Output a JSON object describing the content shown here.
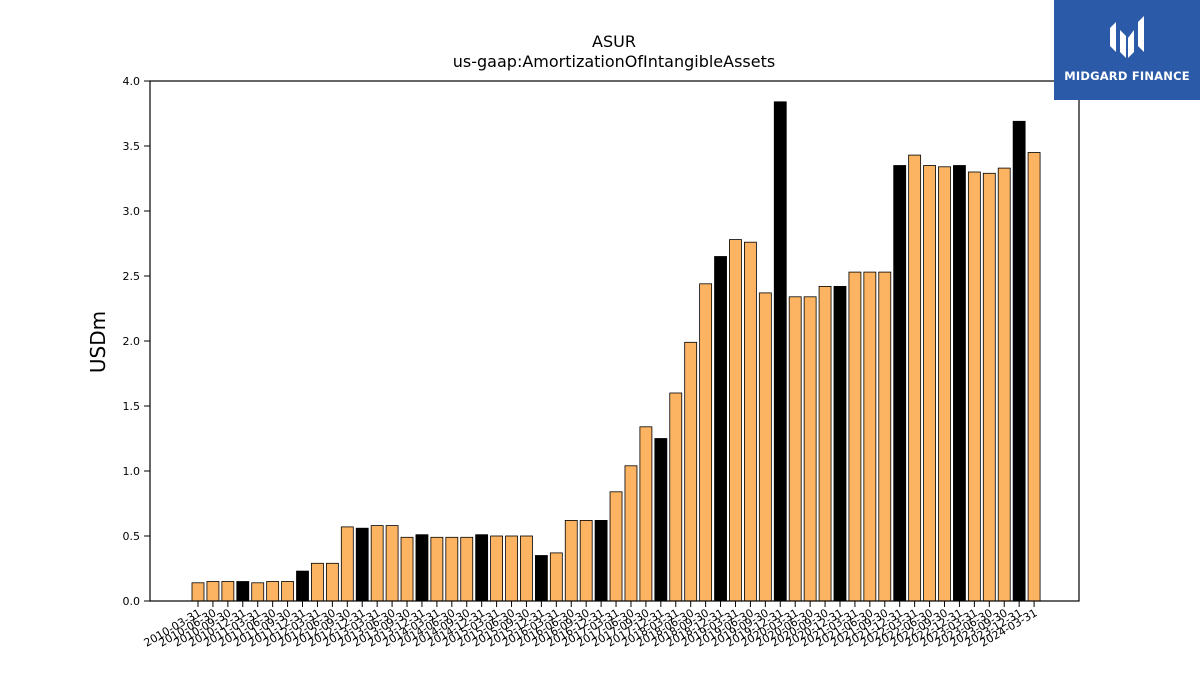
{
  "colors": {
    "bar_default": "#fdb462",
    "bar_highlight": "#000000",
    "bar_edge": "#000000",
    "logo_bg": "#2a5aa8",
    "logo_fg": "#ffffff"
  },
  "logo": {
    "text": "MIDGARD FINANCE",
    "icon": "midgard-logo-icon"
  },
  "chart_data": {
    "type": "bar",
    "title": "ASUR",
    "subtitle": "us-gaap:AmortizationOfIntangibleAssets",
    "xlabel": "",
    "ylabel": "USDm",
    "ylim": [
      0,
      4.0
    ],
    "yticks": [
      "0.0",
      "0.5",
      "1.0",
      "1.5",
      "2.0",
      "2.5",
      "3.0",
      "3.5",
      "4.0"
    ],
    "grid": false,
    "categories": [
      "2010-03-31",
      "2010-06-30",
      "2010-09-30",
      "2010-12-31",
      "2011-03-31",
      "2011-06-30",
      "2011-09-30",
      "2011-12-31",
      "2012-03-31",
      "2012-06-30",
      "2012-09-30",
      "2012-12-31",
      "2013-03-31",
      "2013-06-30",
      "2013-09-30",
      "2013-12-31",
      "2014-03-31",
      "2014-06-30",
      "2014-09-30",
      "2014-12-31",
      "2015-03-31",
      "2015-06-30",
      "2015-09-30",
      "2015-12-31",
      "2016-03-31",
      "2016-06-30",
      "2016-09-30",
      "2016-12-31",
      "2017-03-31",
      "2017-06-30",
      "2017-09-30",
      "2017-12-31",
      "2018-03-31",
      "2018-06-30",
      "2018-09-30",
      "2018-12-31",
      "2019-03-31",
      "2019-06-30",
      "2019-09-30",
      "2019-12-31",
      "2020-03-31",
      "2020-06-30",
      "2020-09-30",
      "2020-12-31",
      "2021-03-31",
      "2021-06-30",
      "2021-09-30",
      "2021-12-31",
      "2022-03-31",
      "2022-06-30",
      "2022-09-30",
      "2022-12-31",
      "2023-03-31",
      "2023-06-30",
      "2023-09-30",
      "2023-12-31",
      "2024-03-31"
    ],
    "values": [
      0.14,
      0.15,
      0.15,
      0.15,
      0.14,
      0.15,
      0.15,
      0.23,
      0.29,
      0.29,
      0.57,
      0.56,
      0.58,
      0.58,
      0.49,
      0.51,
      0.49,
      0.49,
      0.49,
      0.51,
      0.5,
      0.5,
      0.5,
      0.35,
      0.37,
      0.62,
      0.62,
      0.62,
      0.84,
      1.04,
      1.34,
      1.25,
      1.6,
      1.99,
      2.44,
      2.65,
      2.78,
      2.76,
      2.37,
      3.84,
      2.34,
      2.34,
      2.42,
      2.42,
      2.53,
      2.53,
      2.53,
      3.35,
      3.43,
      3.35,
      3.34,
      3.35,
      3.3,
      3.29,
      3.33,
      3.69,
      3.45
    ],
    "highlighted_categories": [
      "2010-12-31",
      "2011-12-31",
      "2012-12-31",
      "2013-12-31",
      "2014-12-31",
      "2015-12-31",
      "2016-12-31",
      "2017-12-31",
      "2018-12-31",
      "2019-12-31",
      "2020-12-31",
      "2021-12-31",
      "2022-12-31",
      "2023-12-31"
    ]
  }
}
